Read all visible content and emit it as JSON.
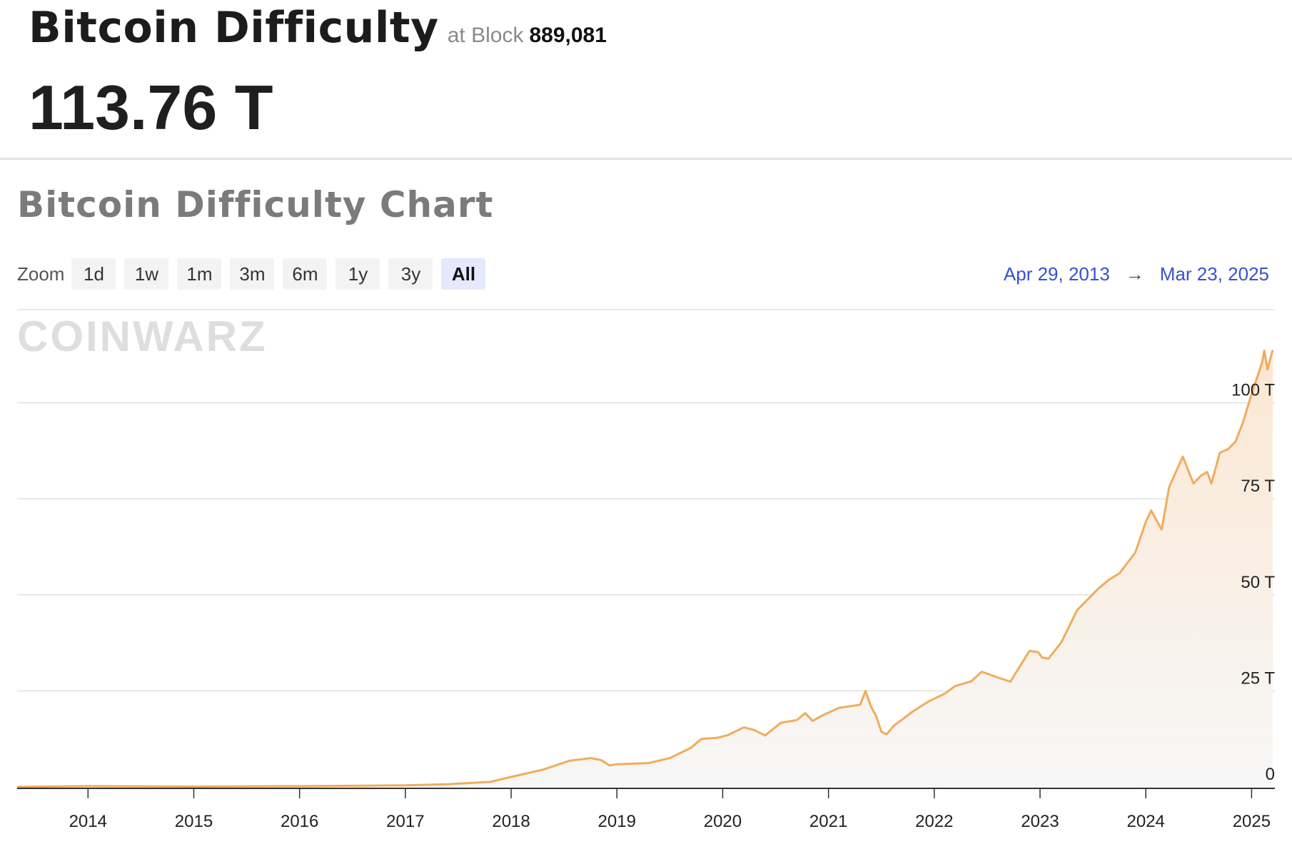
{
  "header": {
    "title": "Bitcoin Difficulty",
    "at_block_label": "at Block",
    "block_number": "889,081",
    "current_value": "113.76 T"
  },
  "chart_section": {
    "title": "Bitcoin Difficulty Chart",
    "zoom_label": "Zoom",
    "zoom_options": [
      "1d",
      "1w",
      "1m",
      "3m",
      "6m",
      "1y",
      "3y",
      "All"
    ],
    "selected_zoom": "All",
    "range_start": "Apr 29, 2013",
    "range_arrow": "→",
    "range_end": "Mar 23, 2025",
    "watermark": "COINWARZ"
  },
  "colors": {
    "line": "#f0ac5c",
    "fill_top": "#fbe7d2",
    "fill_bottom": "#f7f7f7",
    "grid": "#e2e2e2",
    "accent_date": "#3651d4"
  },
  "chart_data": {
    "type": "area",
    "title": "",
    "xlabel": "",
    "ylabel": "",
    "x_unit": "year (decimal)",
    "xlim": [
      2013.33,
      2025.22
    ],
    "ylim": [
      0,
      125
    ],
    "ytick_values": [
      0,
      25,
      50,
      75,
      100
    ],
    "ytick_labels": [
      "0",
      "25 T",
      "50 T",
      "75 T",
      "100 T"
    ],
    "xtick_values": [
      2014,
      2015,
      2016,
      2017,
      2018,
      2019,
      2020,
      2021,
      2022,
      2023,
      2024,
      2025
    ],
    "xtick_labels": [
      "2014",
      "2015",
      "2016",
      "2017",
      "2018",
      "2019",
      "2020",
      "2021",
      "2022",
      "2023",
      "2024",
      "2025"
    ],
    "grid": true,
    "legend": "none",
    "series": [
      {
        "name": "",
        "unit": "T",
        "x": [
          2013.33,
          2014.0,
          2015.0,
          2016.0,
          2017.0,
          2017.4,
          2017.8,
          2018.0,
          2018.3,
          2018.55,
          2018.75,
          2018.85,
          2018.93,
          2019.0,
          2019.3,
          2019.5,
          2019.7,
          2019.8,
          2019.95,
          2020.05,
          2020.2,
          2020.3,
          2020.4,
          2020.55,
          2020.7,
          2020.78,
          2020.85,
          2020.95,
          2021.1,
          2021.3,
          2021.35,
          2021.4,
          2021.45,
          2021.5,
          2021.55,
          2021.62,
          2021.7,
          2021.8,
          2021.95,
          2022.1,
          2022.2,
          2022.35,
          2022.45,
          2022.55,
          2022.6,
          2022.72,
          2022.8,
          2022.9,
          2022.98,
          2023.02,
          2023.08,
          2023.2,
          2023.35,
          2023.55,
          2023.65,
          2023.75,
          2023.9,
          2024.0,
          2024.05,
          2024.15,
          2024.22,
          2024.3,
          2024.35,
          2024.45,
          2024.52,
          2024.58,
          2024.62,
          2024.7,
          2024.78,
          2024.85,
          2024.92,
          2025.0,
          2025.1,
          2025.12,
          2025.15,
          2025.2
        ],
        "values": [
          0.01,
          0.2,
          0.1,
          0.2,
          0.4,
          0.7,
          1.3,
          2.6,
          4.5,
          6.8,
          7.5,
          7.0,
          5.6,
          5.9,
          6.2,
          7.5,
          10.2,
          12.5,
          12.8,
          13.5,
          15.5,
          14.8,
          13.4,
          16.7,
          17.4,
          19.2,
          17.2,
          18.7,
          20.6,
          21.4,
          25.0,
          21.0,
          18.5,
          14.4,
          13.7,
          16.0,
          17.6,
          19.7,
          22.3,
          24.3,
          26.3,
          27.5,
          30.0,
          29.0,
          28.5,
          27.4,
          31.0,
          35.4,
          35.1,
          33.7,
          33.4,
          37.6,
          46.0,
          51.6,
          53.9,
          55.6,
          61.0,
          69.0,
          72.0,
          67.0,
          78.0,
          83.0,
          86.0,
          79.0,
          81.0,
          82.0,
          79.0,
          87.0,
          88.0,
          90.0,
          95.0,
          102.3,
          110.5,
          113.6,
          108.7,
          113.76
        ]
      }
    ]
  }
}
